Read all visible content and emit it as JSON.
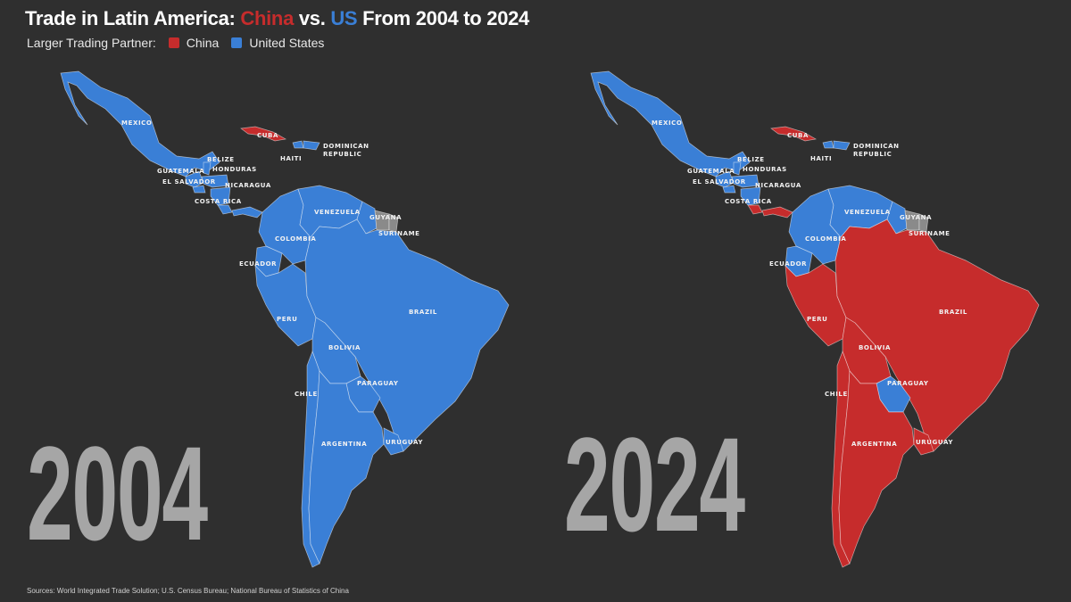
{
  "header": {
    "title_part1": "Trade in Latin America: ",
    "title_china": "China",
    "title_part2": " vs. ",
    "title_us": "US",
    "title_part3": " From 2004 to 2024"
  },
  "legend": {
    "label": "Larger Trading Partner:",
    "items": [
      {
        "label": "China",
        "color": "#c62c2c"
      },
      {
        "label": "United States",
        "color": "#3a7fd6"
      }
    ]
  },
  "colors": {
    "china": "#c62c2c",
    "us": "#3a7fd6",
    "no_data": "#8a8a8a",
    "background": "#2f2f2f"
  },
  "maps": [
    {
      "year": "2004",
      "countries": {
        "mexico": "us",
        "cuba": "china",
        "haiti": "us",
        "dominican_republic": "us",
        "guatemala": "us",
        "belize": "us",
        "honduras": "us",
        "el_salvador": "us",
        "nicaragua": "us",
        "costa_rica": "us",
        "panama": "us",
        "venezuela": "us",
        "guyana": "us",
        "suriname": "no_data",
        "colombia": "us",
        "ecuador": "us",
        "peru": "us",
        "brazil": "us",
        "bolivia": "us",
        "paraguay": "us",
        "chile": "us",
        "argentina": "us",
        "uruguay": "us"
      }
    },
    {
      "year": "2024",
      "countries": {
        "mexico": "us",
        "cuba": "china",
        "haiti": "us",
        "dominican_republic": "us",
        "guatemala": "us",
        "belize": "us",
        "honduras": "us",
        "el_salvador": "us",
        "nicaragua": "us",
        "costa_rica": "china",
        "panama": "china",
        "venezuela": "us",
        "guyana": "us",
        "suriname": "no_data",
        "colombia": "us",
        "ecuador": "us",
        "peru": "china",
        "brazil": "china",
        "bolivia": "china",
        "paraguay": "us",
        "chile": "china",
        "argentina": "china",
        "uruguay": "china"
      }
    }
  ],
  "labels": {
    "mexico": "MEXICO",
    "cuba": "CUBA",
    "haiti": "HAITI",
    "dominican_1": "DOMINICAN",
    "dominican_2": "REPUBLIC",
    "belize": "BELIZE",
    "guatemala": "GUATEMALA",
    "honduras": "HONDURAS",
    "el_salvador": "EL SALVADOR",
    "nicaragua": "NICARAGUA",
    "costa_rica": "COSTA RICA",
    "venezuela": "VENEZUELA",
    "guyana": "GUYANA",
    "suriname": "SURINAME",
    "colombia": "COLOMBIA",
    "ecuador": "ECUADOR",
    "peru": "PERU",
    "brazil": "BRAZIL",
    "bolivia": "BOLIVIA",
    "paraguay": "PARAGUAY",
    "chile": "CHILE",
    "argentina": "ARGENTINA",
    "uruguay": "URUGUAY"
  },
  "footer": {
    "source": "Sources: World Integrated Trade Solution; U.S. Census Bureau; National Bureau of Statistics of China"
  }
}
